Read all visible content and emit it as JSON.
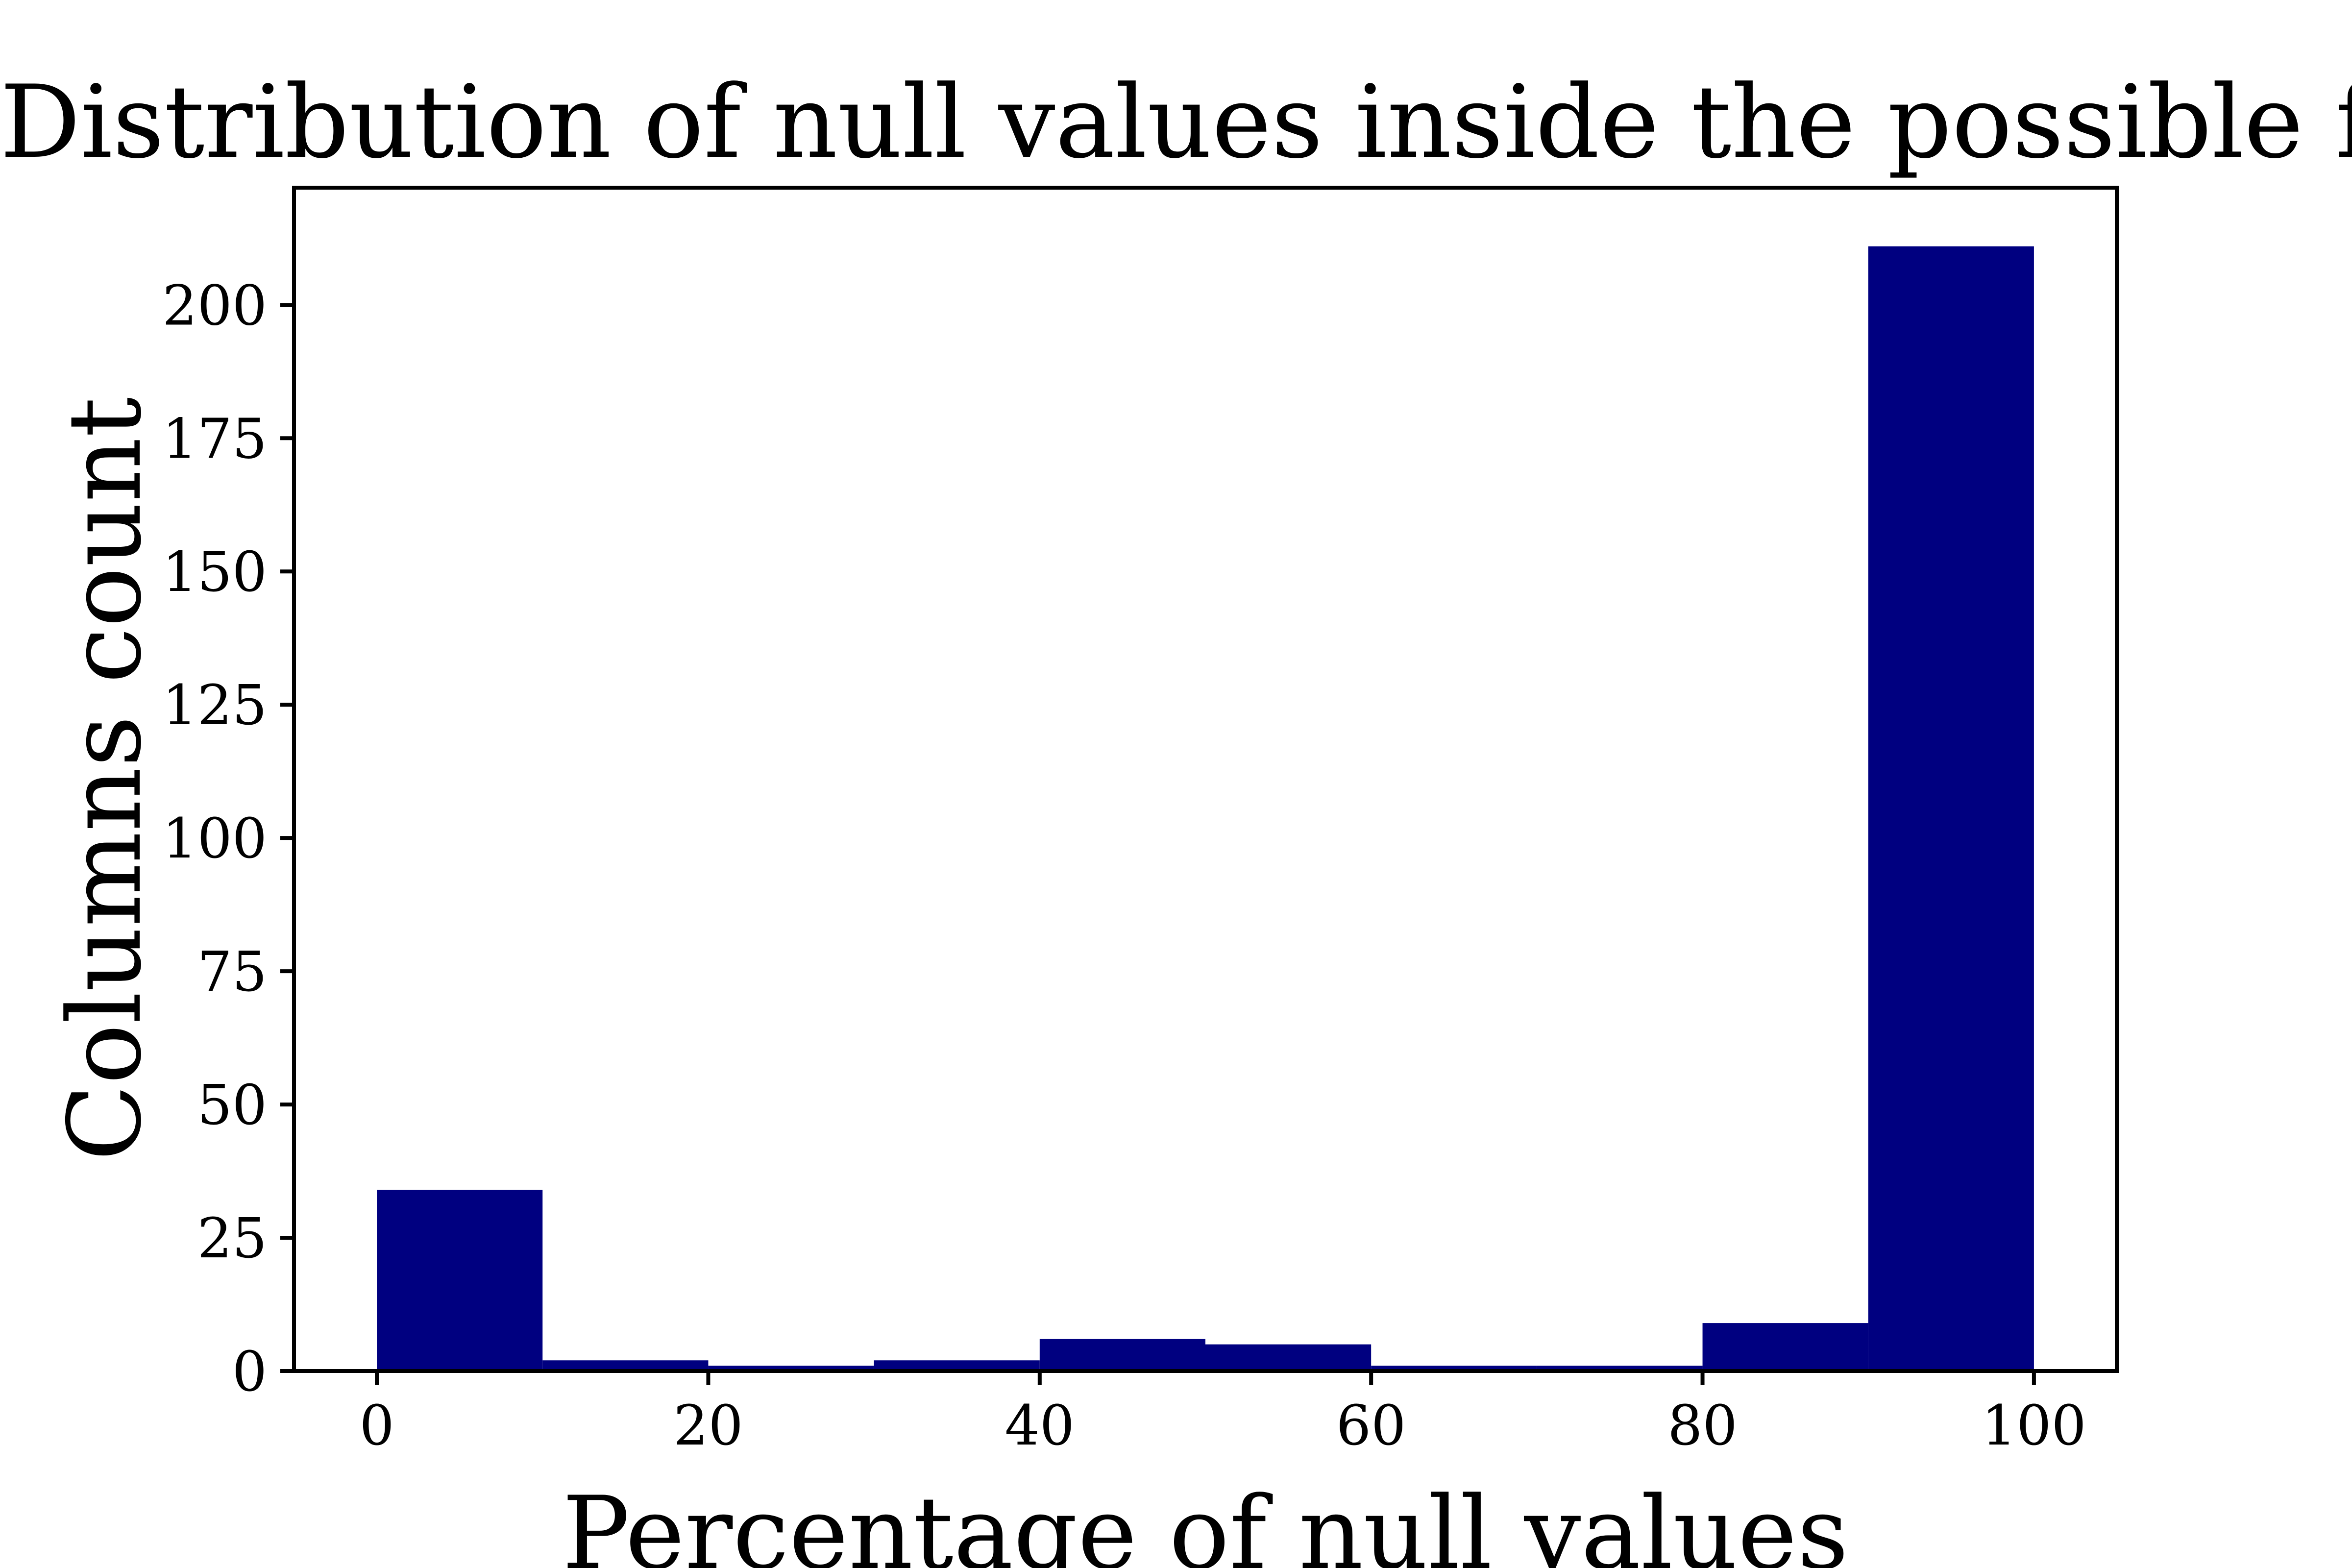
{
  "chart_data": {
    "type": "bar",
    "title": "Distribution of null values inside the possible features",
    "xlabel": "Percentage of null values",
    "ylabel": "Columns count",
    "bins": [
      {
        "start": 0,
        "end": 10,
        "count": 34
      },
      {
        "start": 10,
        "end": 20,
        "count": 2
      },
      {
        "start": 20,
        "end": 30,
        "count": 1
      },
      {
        "start": 30,
        "end": 40,
        "count": 2
      },
      {
        "start": 40,
        "end": 50,
        "count": 6
      },
      {
        "start": 50,
        "end": 60,
        "count": 5
      },
      {
        "start": 60,
        "end": 70,
        "count": 1
      },
      {
        "start": 70,
        "end": 80,
        "count": 1
      },
      {
        "start": 80,
        "end": 90,
        "count": 9
      },
      {
        "start": 90,
        "end": 100,
        "count": 211
      }
    ],
    "xlim": [
      -5,
      105
    ],
    "ylim": [
      0,
      222
    ],
    "xticks": [
      0,
      20,
      40,
      60,
      80,
      100
    ],
    "yticks": [
      0,
      25,
      50,
      75,
      100,
      125,
      150,
      175,
      200
    ],
    "grid": false,
    "bar_color": "#000080"
  }
}
